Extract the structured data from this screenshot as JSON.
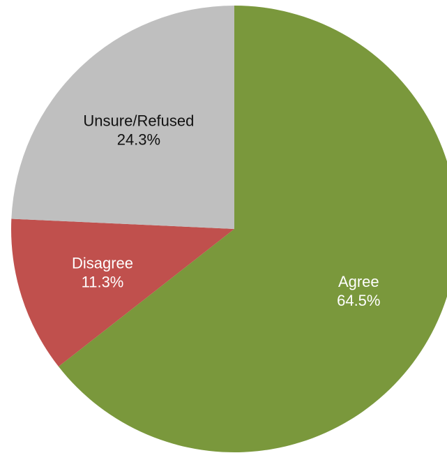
{
  "chart_data": {
    "type": "pie",
    "title": "",
    "slices": [
      {
        "label": "Agree",
        "value": 64.5,
        "value_label": "64.5%",
        "color": "#7A983C",
        "label_color": "#FFFFFF"
      },
      {
        "label": "Disagree",
        "value": 11.3,
        "value_label": "11.3%",
        "color": "#C0504D",
        "label_color": "#FFFFFF"
      },
      {
        "label": "Unsure/Refused",
        "value": 24.3,
        "value_label": "24.3%",
        "color": "#BFBFBF",
        "label_color": "#111111"
      }
    ],
    "start_angle": "12 o'clock",
    "direction": "clockwise",
    "legend": "none"
  }
}
